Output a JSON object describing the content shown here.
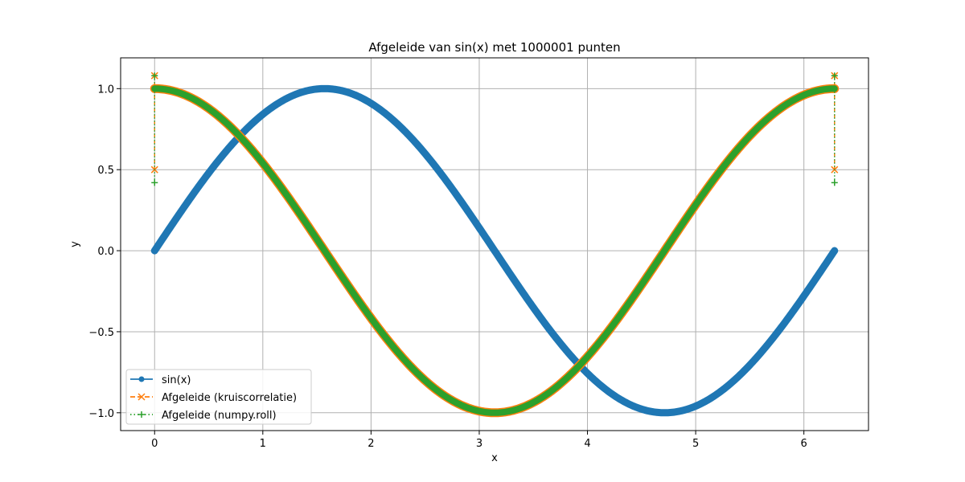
{
  "chart_data": {
    "type": "line",
    "title": "Afgeleide van sin(x) met 1000001 punten",
    "xlabel": "x",
    "ylabel": "y",
    "xlim": [
      -0.314,
      6.597
    ],
    "ylim": [
      -1.11,
      1.19
    ],
    "xticks": [
      0,
      1,
      2,
      3,
      4,
      5,
      6
    ],
    "xtick_labels": [
      "0",
      "1",
      "2",
      "3",
      "4",
      "5",
      "6"
    ],
    "yticks": [
      -1.0,
      -0.5,
      0.0,
      0.5,
      1.0
    ],
    "ytick_labels": [
      "−1.0",
      "−0.5",
      "0.0",
      "0.5",
      "1.0"
    ],
    "grid": true,
    "legend_position": "lower-left",
    "x_range": [
      0,
      6.283185
    ],
    "num_points": 1000001,
    "series": [
      {
        "name": "sin(x)",
        "function": "sin",
        "color": "#1f77b4",
        "linestyle": "solid",
        "marker": "o"
      },
      {
        "name": "Afgeleide (kruiscorrelatie)",
        "function": "cos",
        "color": "#ff7f0e",
        "linestyle": "dashed",
        "marker": "x",
        "endpoint_outliers": [
          1.08,
          0.5
        ]
      },
      {
        "name": "Afgeleide (numpy.roll)",
        "function": "cos",
        "color": "#2ca02c",
        "linestyle": "dotted",
        "marker": "+",
        "endpoint_outliers": [
          1.08,
          0.42
        ]
      }
    ]
  }
}
